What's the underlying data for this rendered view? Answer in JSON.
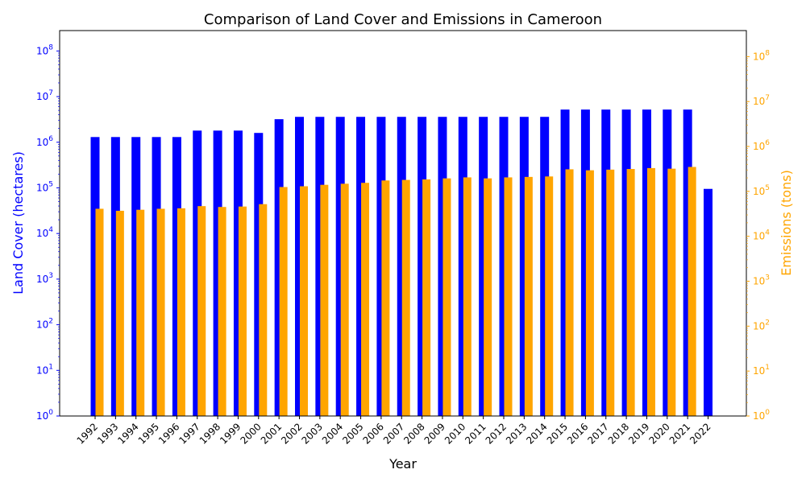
{
  "chart_data": {
    "type": "bar",
    "title": "Comparison of Land Cover and Emissions in Cameroon",
    "xlabel": "Year",
    "ylabel_left": "Land Cover (hectares)",
    "ylabel_right": "Emissions (tons)",
    "left_scale": "log",
    "right_scale": "log",
    "ylim_left": [
      1,
      280000000
    ],
    "ylim_right": [
      1,
      380000000
    ],
    "grid": false,
    "categories": [
      "1992",
      "1993",
      "1994",
      "1995",
      "1996",
      "1997",
      "1998",
      "1999",
      "2000",
      "2001",
      "2002",
      "2003",
      "2004",
      "2005",
      "2006",
      "2007",
      "2008",
      "2009",
      "2010",
      "2011",
      "2012",
      "2013",
      "2014",
      "2015",
      "2016",
      "2017",
      "2018",
      "2019",
      "2020",
      "2021",
      "2022"
    ],
    "series": [
      {
        "axis": "left",
        "color": "#0000ff",
        "values": [
          1300000,
          1300000,
          1300000,
          1300000,
          1300000,
          1800000,
          1800000,
          1800000,
          1600000,
          3200000,
          3600000,
          3600000,
          3600000,
          3600000,
          3600000,
          3600000,
          3600000,
          3600000,
          3600000,
          3600000,
          3600000,
          3600000,
          3600000,
          5200000,
          5200000,
          5200000,
          5200000,
          5200000,
          5200000,
          5200000,
          95000
        ]
      },
      {
        "axis": "right",
        "color": "#ffa500",
        "values": [
          41000,
          37000,
          39000,
          41000,
          42000,
          47000,
          45000,
          46000,
          52000,
          125000,
          130000,
          140000,
          148000,
          155000,
          175000,
          180000,
          185000,
          195000,
          205000,
          195000,
          205000,
          210000,
          215000,
          310000,
          295000,
          305000,
          315000,
          330000,
          320000,
          350000,
          null
        ]
      }
    ],
    "left_ticks": [
      "10^0",
      "10^1",
      "10^2",
      "10^3",
      "10^4",
      "10^5",
      "10^6",
      "10^7",
      "10^8"
    ],
    "right_ticks": [
      "10^0",
      "10^1",
      "10^2",
      "10^3",
      "10^4",
      "10^5",
      "10^6",
      "10^7",
      "10^8"
    ]
  }
}
